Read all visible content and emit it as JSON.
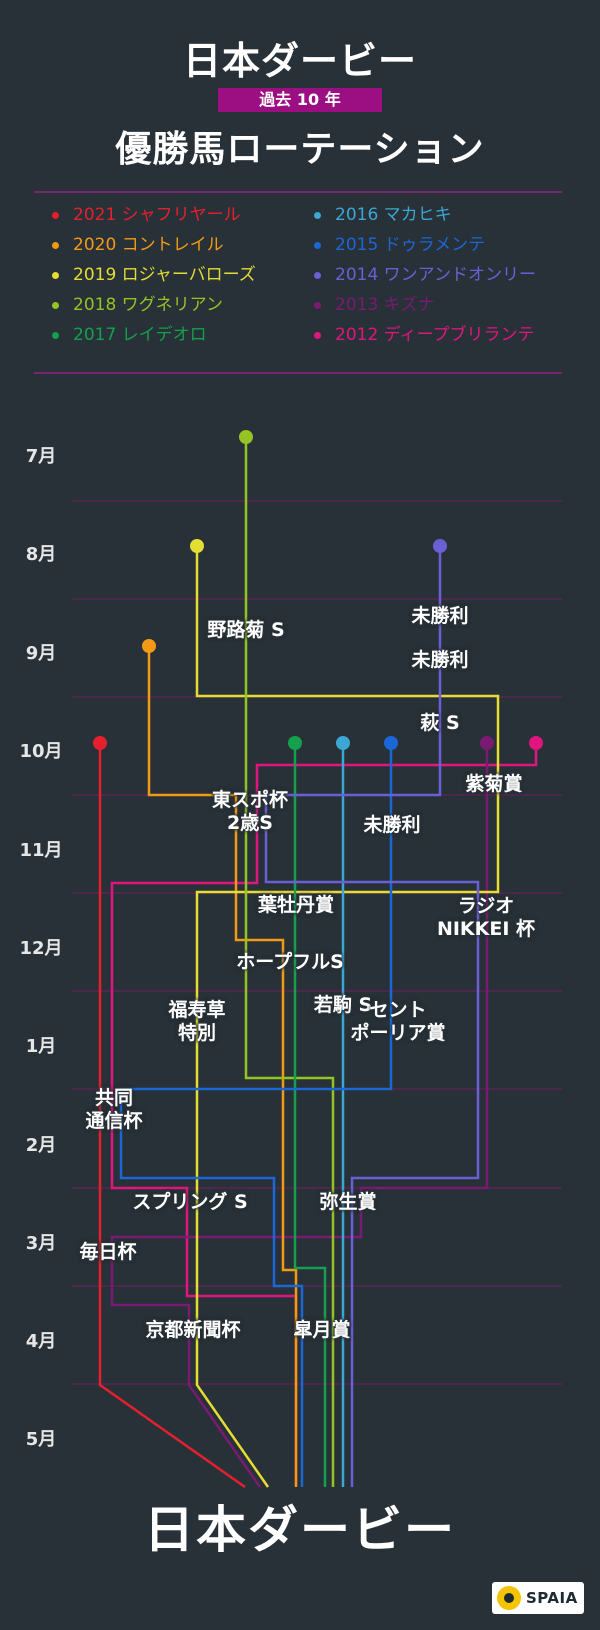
{
  "header": {
    "title_top": "日本ダービー",
    "badge": "過去 10 年",
    "title_main": "優勝馬ローテーション"
  },
  "legend": [
    {
      "label": "2021 シャフリヤール",
      "color": "#e5202e"
    },
    {
      "label": "2020 コントレイル",
      "color": "#f29a16"
    },
    {
      "label": "2019 ロジャーバローズ",
      "color": "#e4dd33"
    },
    {
      "label": "2018 ワグネリアン",
      "color": "#94c324"
    },
    {
      "label": "2017 レイデオロ",
      "color": "#14a04c"
    },
    {
      "label": "2016 マカヒキ",
      "color": "#3aa7d4"
    },
    {
      "label": "2015 ドゥラメンテ",
      "color": "#1c67d6"
    },
    {
      "label": "2014 ワンアンドオンリー",
      "color": "#6b5fd6"
    },
    {
      "label": "2013 キズナ",
      "color": "#7a1a73"
    },
    {
      "label": "2012 ディープブリランテ",
      "color": "#e0157f"
    }
  ],
  "months": [
    "7月",
    "8月",
    "9月",
    "10月",
    "11月",
    "12月",
    "1月",
    "2月",
    "3月",
    "4月",
    "5月"
  ],
  "races": [
    {
      "name": "野路菊 S",
      "lines": [
        "野路菊 S"
      ]
    },
    {
      "name": "未勝利1",
      "lines": [
        "未勝利"
      ]
    },
    {
      "name": "未勝利2",
      "lines": [
        "未勝利"
      ]
    },
    {
      "name": "萩 S",
      "lines": [
        "萩 S"
      ]
    },
    {
      "name": "紫菊賞",
      "lines": [
        "紫菊賞"
      ]
    },
    {
      "name": "東スポ杯2歳S",
      "lines": [
        "東スポ杯",
        "2歳S"
      ]
    },
    {
      "name": "未勝利3",
      "lines": [
        "未勝利"
      ]
    },
    {
      "name": "葉牡丹賞",
      "lines": [
        "葉牡丹賞"
      ]
    },
    {
      "name": "ラジオNIKKEI杯",
      "lines": [
        "ラジオ",
        "NIKKEI 杯"
      ]
    },
    {
      "name": "ホープフルS",
      "lines": [
        "ホープフルS"
      ]
    },
    {
      "name": "福寿草特別",
      "lines": [
        "福寿草",
        "特別"
      ]
    },
    {
      "name": "若駒 S",
      "lines": [
        "若駒 S"
      ]
    },
    {
      "name": "セントポーリア賞",
      "lines": [
        "セント",
        "ポーリア賞"
      ]
    },
    {
      "name": "共同通信杯",
      "lines": [
        "共同",
        "通信杯"
      ]
    },
    {
      "name": "スプリング S",
      "lines": [
        "スプリング S"
      ]
    },
    {
      "name": "弥生賞",
      "lines": [
        "弥生賞"
      ]
    },
    {
      "name": "毎日杯",
      "lines": [
        "毎日杯"
      ]
    },
    {
      "name": "京都新聞杯",
      "lines": [
        "京都新聞杯"
      ]
    },
    {
      "name": "皐月賞",
      "lines": [
        "皐月賞"
      ]
    }
  ],
  "footer": {
    "title_bottom": "日本ダービー",
    "logo_text": "SPAIA",
    "logo_icon": "spaia-logo-icon"
  }
}
